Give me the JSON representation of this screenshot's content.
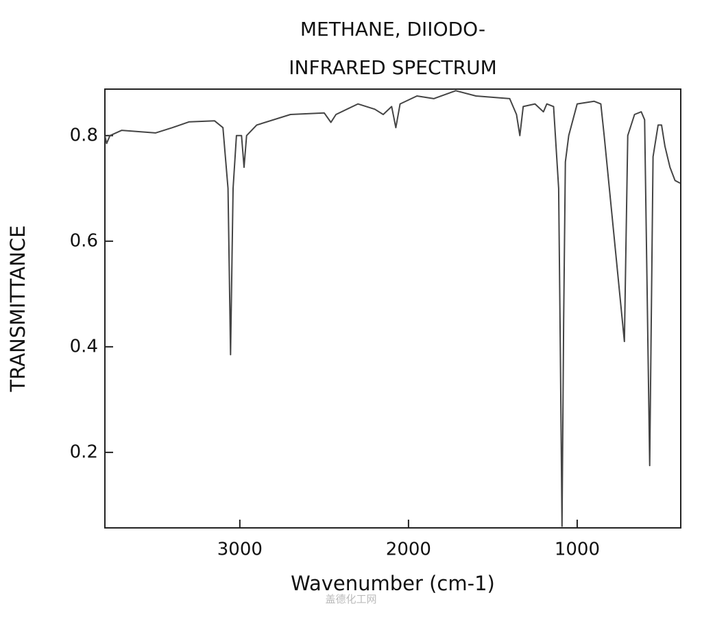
{
  "chart_data": {
    "type": "line",
    "title": "METHANE, DIIODO-",
    "subtitle": "INFRARED SPECTRUM",
    "x_label": "Wavenumber (cm-1)",
    "y_label": "TRANSMITTANCE",
    "watermark": "盖德化工网",
    "xlim": [
      3800,
      386
    ],
    "ylim": [
      0.057,
      0.888
    ],
    "xticks": [
      3000,
      2000,
      1000
    ],
    "yticks": [
      0.2,
      0.4,
      0.6,
      0.8
    ],
    "series": [
      {
        "name": "spectrum",
        "color": "#444444",
        "x": [
          3800,
          3790,
          3770,
          3700,
          3500,
          3400,
          3300,
          3150,
          3100,
          3070,
          3055,
          3040,
          3020,
          2990,
          2975,
          2960,
          2900,
          2700,
          2500,
          2460,
          2430,
          2300,
          2200,
          2150,
          2100,
          2075,
          2050,
          1950,
          1850,
          1720,
          1600,
          1400,
          1360,
          1340,
          1320,
          1250,
          1200,
          1180,
          1140,
          1110,
          1100,
          1090,
          1080,
          1070,
          1050,
          1000,
          900,
          860,
          840,
          720,
          700,
          660,
          620,
          600,
          570,
          550,
          520,
          500,
          480,
          450,
          420,
          390
        ],
        "values": [
          0.8,
          0.785,
          0.8,
          0.81,
          0.805,
          0.815,
          0.826,
          0.828,
          0.815,
          0.7,
          0.385,
          0.7,
          0.8,
          0.8,
          0.74,
          0.8,
          0.82,
          0.84,
          0.843,
          0.825,
          0.84,
          0.86,
          0.85,
          0.84,
          0.855,
          0.815,
          0.86,
          0.875,
          0.87,
          0.885,
          0.875,
          0.87,
          0.84,
          0.8,
          0.855,
          0.86,
          0.845,
          0.86,
          0.855,
          0.7,
          0.4,
          0.06,
          0.45,
          0.75,
          0.8,
          0.86,
          0.865,
          0.86,
          0.8,
          0.41,
          0.8,
          0.84,
          0.845,
          0.83,
          0.175,
          0.76,
          0.82,
          0.82,
          0.78,
          0.74,
          0.715,
          0.71
        ]
      }
    ]
  }
}
